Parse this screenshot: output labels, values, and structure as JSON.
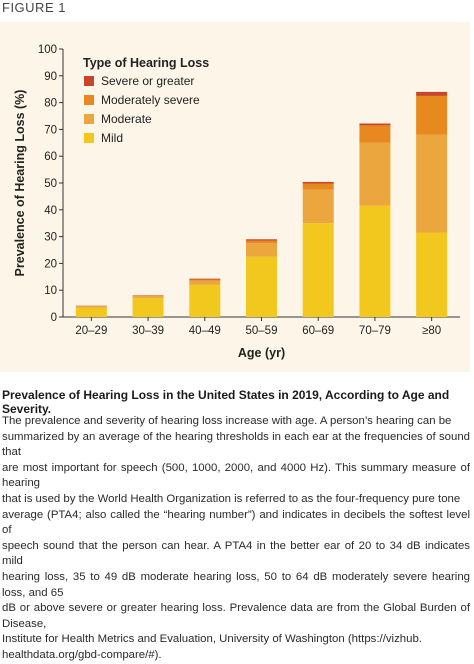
{
  "figure_label": "FIGURE 1",
  "chart_data": {
    "type": "bar",
    "stacked": true,
    "ylabel": "Prevalence of Hearing Loss (%)",
    "xlabel": "Age (yr)",
    "ylim": [
      0,
      100
    ],
    "yticks": [
      0,
      10,
      20,
      30,
      40,
      50,
      60,
      70,
      80,
      90,
      100
    ],
    "categories": [
      "20–29",
      "30–39",
      "40–49",
      "50–59",
      "60–69",
      "70–79",
      "≥80"
    ],
    "legend_title": "Type of Hearing Loss",
    "legend_position": "top-left",
    "series": [
      {
        "name": "Mild",
        "color": "#f2c81e",
        "values": [
          3.5,
          7.0,
          12.0,
          22.5,
          35.0,
          41.5,
          31.5
        ]
      },
      {
        "name": "Moderate",
        "color": "#eba63d",
        "values": [
          0.5,
          0.8,
          1.5,
          5.0,
          12.5,
          23.5,
          36.5
        ]
      },
      {
        "name": "Moderately severe",
        "color": "#e8891f",
        "values": [
          0.1,
          0.2,
          0.5,
          1.0,
          2.3,
          6.5,
          14.5
        ]
      },
      {
        "name": "Severe or greater",
        "color": "#c8452a",
        "values": [
          0.1,
          0.1,
          0.3,
          0.5,
          0.6,
          0.7,
          1.5
        ]
      }
    ],
    "legend_order": [
      "Severe or greater",
      "Moderately severe",
      "Moderate",
      "Mild"
    ]
  },
  "caption": {
    "title": "Prevalence of Hearing Loss in the United States in 2019, According to Age and Severity.",
    "lines": [
      "The prevalence and severity of hearing loss increase with age. A person’s hearing can be",
      "summarized by an average of the hearing thresholds in each ear at the frequencies of sound that",
      "are most important for speech (500, 1000, 2000, and 4000 Hz). This summary measure of hearing",
      "that is used by the World Health Organization is referred to as the four-frequency pure tone",
      "average (PTA4; also called the “hearing number”) and indicates in decibels the softest level of",
      "speech sound that the person can hear. A PTA4 in the better ear of 20 to 34 dB indicates mild",
      "hearing loss, 35 to 49 dB moderate hearing loss, 50 to 64 dB moderately severe hearing loss, and 65",
      "dB or above severe or greater hearing loss. Prevalence data are from the Global Burden of Disease,",
      "Institute for Health Metrics and Evaluation, University of Washington (https://vizhub.",
      "healthdata.org/gbd-compare/#)."
    ]
  }
}
